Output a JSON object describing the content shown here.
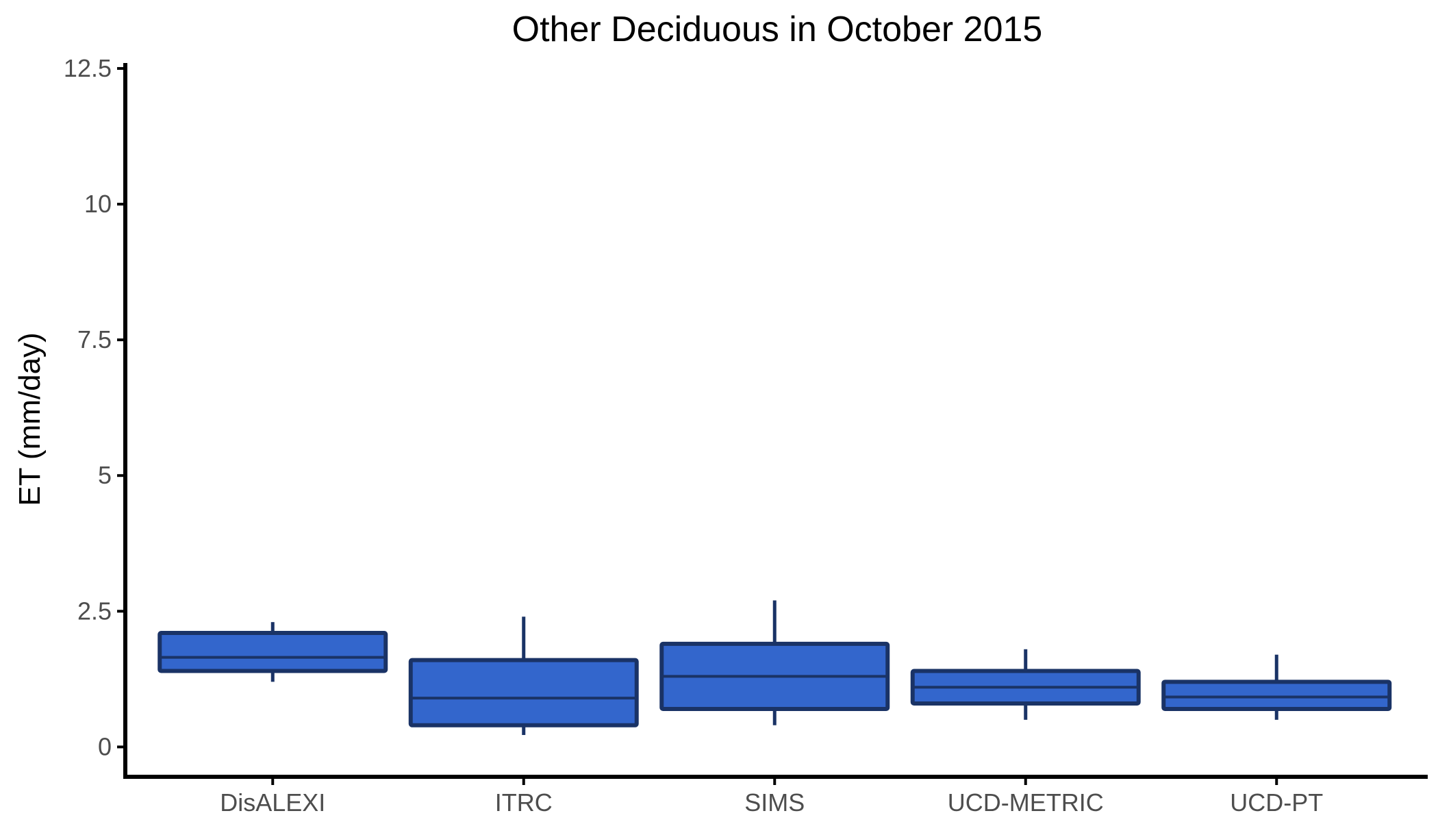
{
  "chart_data": {
    "type": "boxplot",
    "title": "Other Deciduous in October 2015",
    "xlabel": "",
    "ylabel": "ET (mm/day)",
    "ylim": [
      -0.55,
      12.6
    ],
    "yticks": [
      0,
      2.5,
      5,
      7.5,
      10,
      12.5
    ],
    "ytick_labels": [
      "0",
      "2.5",
      "5",
      "7.5",
      "10",
      "12.5"
    ],
    "categories": [
      "DisALEXI",
      "ITRC",
      "SIMS",
      "UCD-METRIC",
      "UCD-PT"
    ],
    "boxes": [
      {
        "category": "DisALEXI",
        "whisker_low": 1.2,
        "q1": 1.4,
        "median": 1.65,
        "q3": 2.1,
        "whisker_high": 2.3
      },
      {
        "category": "ITRC",
        "whisker_low": 0.22,
        "q1": 0.4,
        "median": 0.9,
        "q3": 1.6,
        "whisker_high": 2.4
      },
      {
        "category": "SIMS",
        "whisker_low": 0.4,
        "q1": 0.7,
        "median": 1.3,
        "q3": 1.9,
        "whisker_high": 2.7
      },
      {
        "category": "UCD-METRIC",
        "whisker_low": 0.5,
        "q1": 0.8,
        "median": 1.1,
        "q3": 1.4,
        "whisker_high": 1.8
      },
      {
        "category": "UCD-PT",
        "whisker_low": 0.5,
        "q1": 0.7,
        "median": 0.92,
        "q3": 1.2,
        "whisker_high": 1.7
      }
    ],
    "grid": false,
    "colors": {
      "box_fill": "#3366cc",
      "box_outline": "#1a3366",
      "axis": "#000000",
      "tick_label": "#4d4d4d"
    }
  }
}
